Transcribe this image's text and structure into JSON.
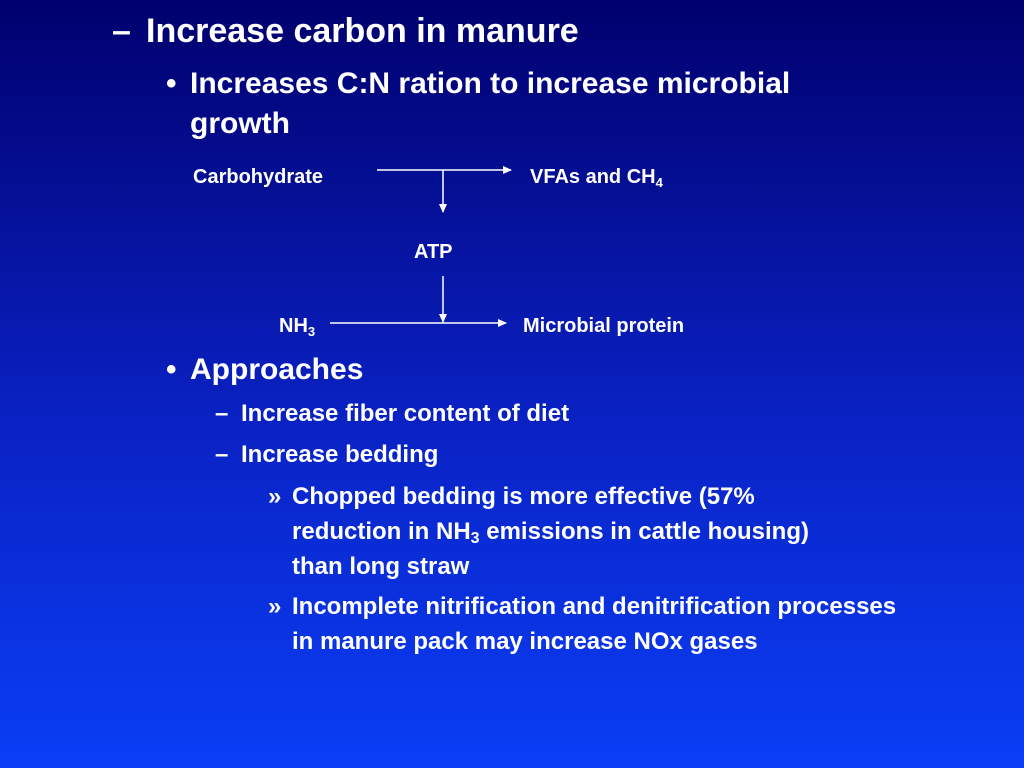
{
  "slide": {
    "heading": {
      "marker": "–",
      "text": "Increase carbon in manure"
    },
    "bullet1": {
      "marker": "•",
      "text": "Increases C:N ration to increase microbial growth"
    },
    "diagram": {
      "carbohydrate": "Carbohydrate",
      "vfas_text": "VFAs and CH",
      "vfas_sub": "4",
      "atp": "ATP",
      "nh3_text": "NH",
      "nh3_sub": "3",
      "microbial_protein": "Microbial protein"
    },
    "bullet2": {
      "marker": "•",
      "text": "Approaches"
    },
    "sub1": {
      "marker": "–",
      "text": "Increase fiber content  of diet"
    },
    "sub2": {
      "marker": "–",
      "text": "Increase bedding"
    },
    "item1": {
      "marker": "»",
      "line1": "Chopped bedding is more effective (57%",
      "line2_pre": "reduction in NH",
      "line2_sub": "3",
      "line2_post": " emissions in cattle housing)",
      "line3": "than long straw"
    },
    "item2": {
      "marker": "»",
      "text": "Incomplete nitrification and denitrification processes in manure pack may increase NOx gases"
    }
  },
  "colors": {
    "background_top": "#00006e",
    "background_bottom": "#0a3ef6",
    "text": "#ffffff"
  }
}
